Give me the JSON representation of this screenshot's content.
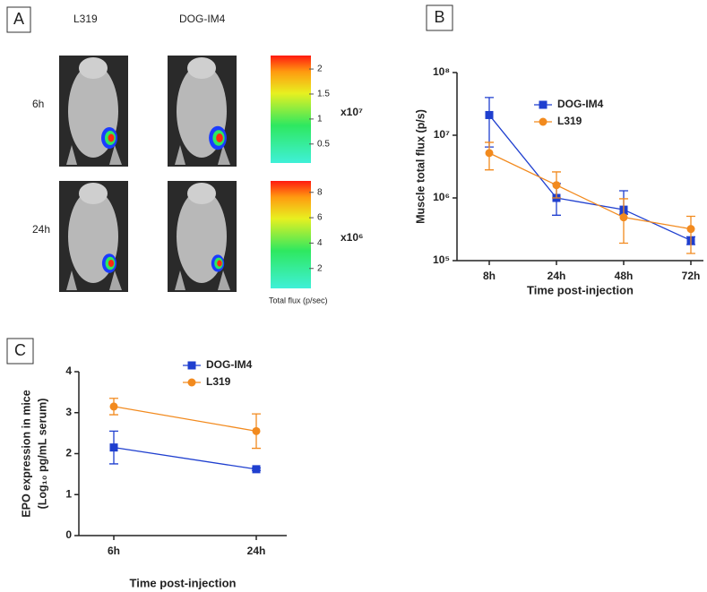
{
  "panel_a": {
    "label": "A",
    "columns": [
      "L319",
      "DOG-IM4"
    ],
    "rows": [
      {
        "label": "6h",
        "colorbar": {
          "range": [
            0.12,
            2.27
          ],
          "ticks": [
            0.5,
            1,
            1.5,
            2
          ],
          "multiplier": "x10⁷"
        }
      },
      {
        "label": "24h",
        "colorbar": {
          "range": [
            0.43,
            8.9
          ],
          "ticks": [
            2,
            4,
            6,
            8
          ],
          "multiplier": "x10⁶"
        }
      }
    ],
    "colorbar_title": "Total flux (p/sec)"
  },
  "chart_data": [
    {
      "panel_label": "B",
      "type": "line",
      "x_label": "Time post-injection",
      "y_label": [
        "Muscle total flux (p/s)"
      ],
      "categories": [
        "8h",
        "24h",
        "48h",
        "72h"
      ],
      "log_y": true,
      "ylim": [
        100000,
        100000000
      ],
      "yticks": [
        {
          "value": 100000,
          "label": "10⁵"
        },
        {
          "value": 1000000,
          "label": "10⁶"
        },
        {
          "value": 10000000,
          "label": "10⁷"
        },
        {
          "value": 100000000,
          "label": "10⁸"
        }
      ],
      "legend": "upper right",
      "series": [
        {
          "name": "DOG-IM4",
          "color": "#1f3fcf",
          "marker": "square",
          "values": [
            21000000,
            1000000,
            650000,
            210000
          ],
          "err_minus": [
            14500000,
            470000,
            100000,
            30000
          ],
          "err_plus": [
            19000000,
            700000,
            650000,
            30000
          ]
        },
        {
          "name": "L319",
          "color": "#f28a1e",
          "marker": "circle",
          "values": [
            5200000,
            1600000,
            490000,
            320000
          ],
          "err_minus": [
            2400000,
            600000,
            300000,
            190000
          ],
          "err_plus": [
            2500000,
            1000000,
            480000,
            190000
          ]
        }
      ]
    },
    {
      "panel_label": "C",
      "type": "line",
      "x_label": "Time post-injection",
      "y_label": [
        "EPO expression in mice",
        "(Log₁₀ pg/mL serum)"
      ],
      "categories": [
        "6h",
        "24h"
      ],
      "log_y": false,
      "ylim": [
        0,
        4
      ],
      "yticks": [
        0,
        1,
        2,
        3,
        4
      ],
      "legend": "upper center",
      "series": [
        {
          "name": "DOG-IM4",
          "color": "#1f3fcf",
          "marker": "square",
          "values": [
            2.15,
            1.62
          ],
          "err_minus": [
            0.4,
            0.03
          ],
          "err_plus": [
            0.4,
            0.03
          ]
        },
        {
          "name": "L319",
          "color": "#f28a1e",
          "marker": "circle",
          "values": [
            3.15,
            2.55
          ],
          "err_minus": [
            0.2,
            0.42
          ],
          "err_plus": [
            0.2,
            0.42
          ]
        }
      ]
    }
  ]
}
